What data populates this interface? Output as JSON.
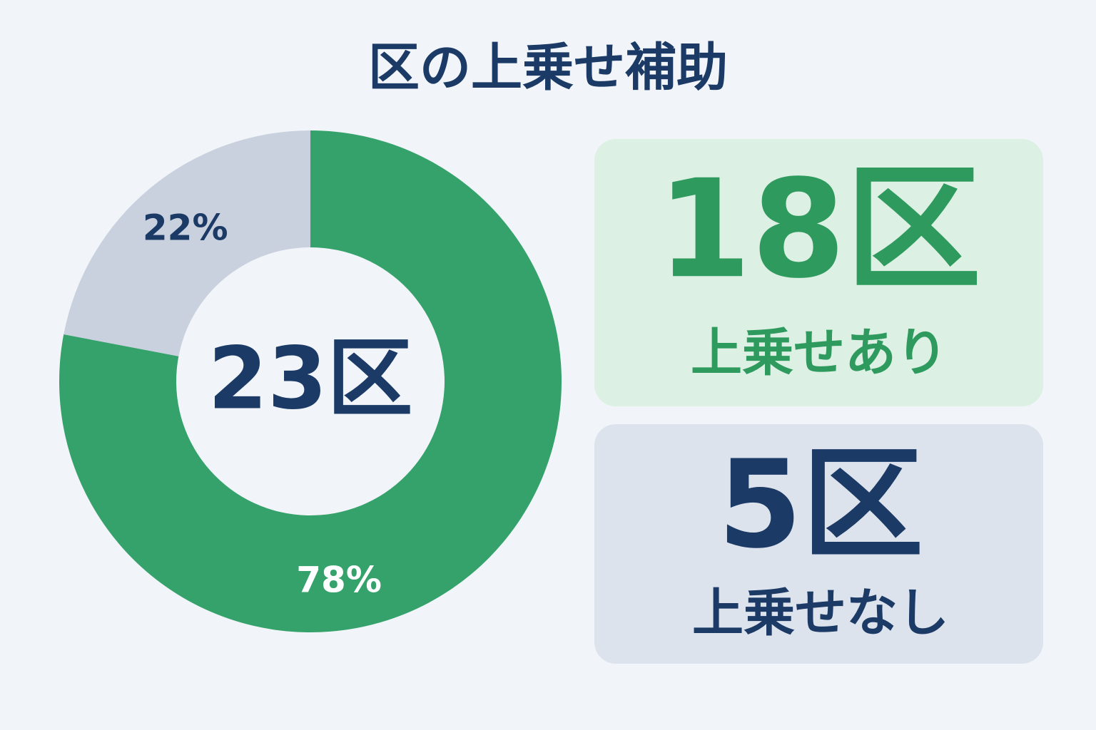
{
  "chart_data": {
    "type": "donut",
    "title": "区の上乗せ補助",
    "categories": [
      "上乗せあり",
      "上乗せなし"
    ],
    "values": [
      78,
      22
    ],
    "value_labels": [
      "78%",
      "22%"
    ],
    "colors": [
      "#34a26a",
      "#c9d1de"
    ],
    "center_label": "23区",
    "card_labels": [
      "18区",
      "5区"
    ]
  }
}
